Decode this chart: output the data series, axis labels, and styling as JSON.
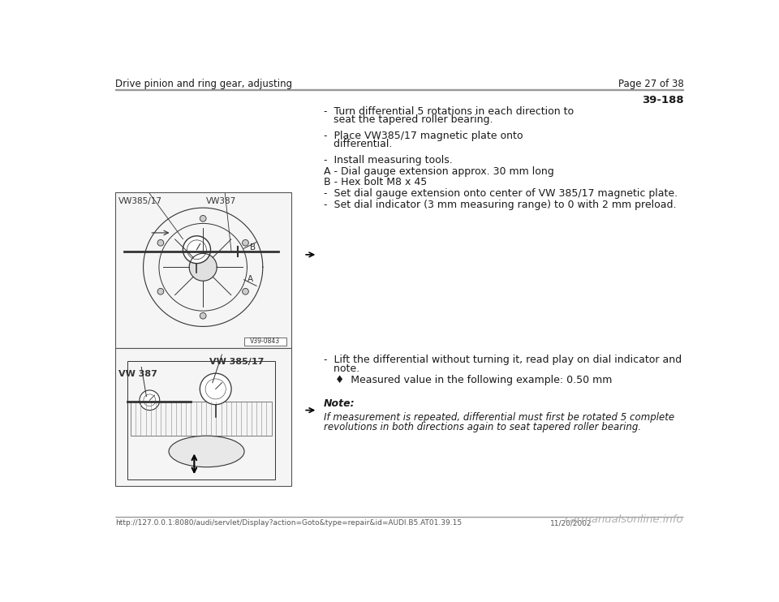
{
  "bg_color": "#ffffff",
  "header_left": "Drive pinion and ring gear, adjusting",
  "header_right": "Page 27 of 38",
  "section_number": "39-188",
  "bullet1_line1": "-  Turn differential 5 rotations in each direction to",
  "bullet1_line2": "   seat the tapered roller bearing.",
  "bullet2_line1": "-  Place VW385/17 magnetic plate onto",
  "bullet2_line2": "   differential.",
  "panel1_bullets": [
    "-  Install measuring tools.",
    "A - Dial gauge extension approx. 30 mm long",
    "B - Hex bolt M8 x 45",
    "-  Set dial gauge extension onto center of VW 385/17 magnetic plate.",
    "-  Set dial indicator (3 mm measuring range) to 0 with 2 mm preload."
  ],
  "panel2_bullet1_line1": "-  Lift the differential without turning it, read play on dial indicator and",
  "panel2_bullet1_line2": "   note.",
  "panel2_bullet2": "♦  Measured value in the following example: 0.50 mm",
  "note_label": "Note:",
  "note_line1": "If measurement is repeated, differential must first be rotated 5 complete",
  "note_line2": "revolutions in both directions again to seat tapered roller bearing.",
  "footer_left": "http://127.0.0.1:8080/audi/servlet/Display?action=Goto&type=repair&id=AUDI.B5.AT01.39.15",
  "footer_date": "11/20/2002",
  "footer_brand": "carmanualsonline.info",
  "line_color": "#999999",
  "text_color": "#1a1a1a",
  "header_color": "#1a1a1a",
  "img_border_color": "#555555",
  "img_bg_color": "#f5f5f5",
  "img_line_color": "#333333",
  "font_size_header": 8.5,
  "font_size_body": 9.0,
  "font_size_section": 9.5,
  "font_size_footer": 6.5,
  "font_size_img_label": 7.5
}
